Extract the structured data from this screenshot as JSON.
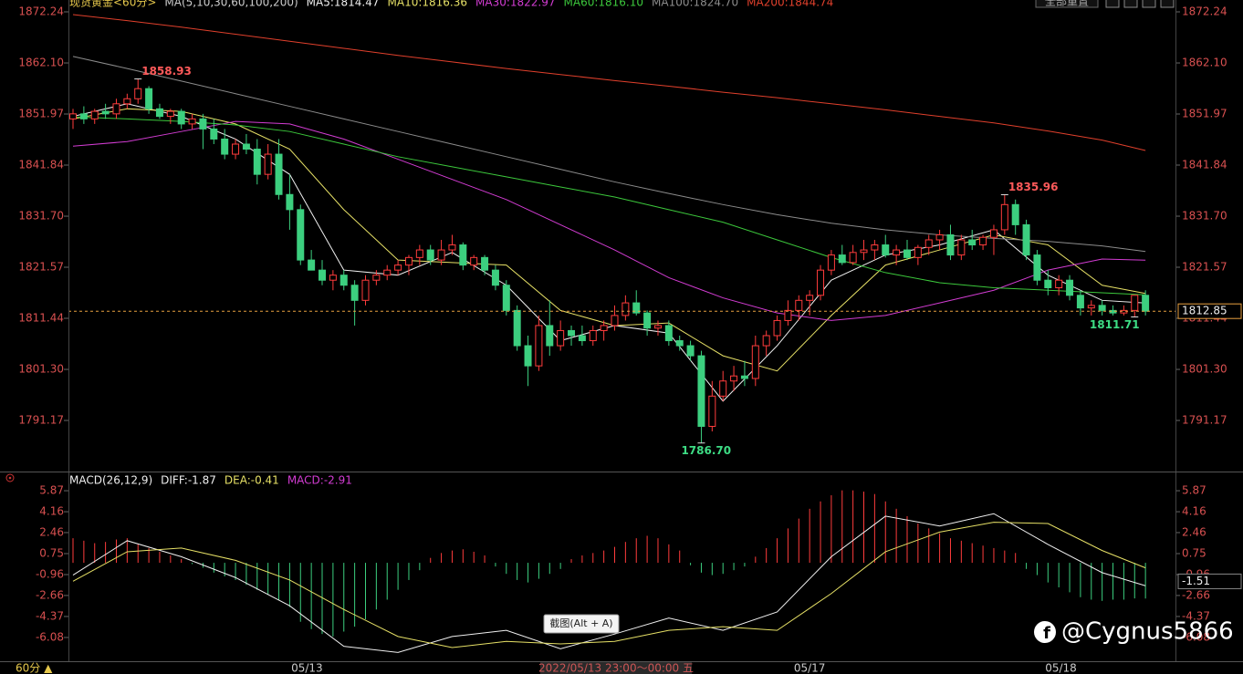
{
  "chart_data": [
    {
      "type": "candlestick",
      "title": "现货黄金<60分>",
      "indicator_label": "MA(5,10,30,60,100,200)",
      "up_color": "#ff3c3c",
      "down_color": "#3ccf7f",
      "ylim": [
        1781.4,
        1874.59
      ],
      "yticks": [
        1872.24,
        {
          "value": 1862.1,
          "label": "1862.10"
        },
        1851.97,
        1841.84,
        {
          "value": 1831.7,
          "label": "1831.70"
        },
        1821.57,
        1811.44,
        {
          "value": 1801.3,
          "label": "1801.30"
        },
        1791.17
      ],
      "candles": [
        [
          1851,
          1853,
          1849,
          1852
        ],
        [
          1852,
          1853.5,
          1850,
          1851
        ],
        [
          1851,
          1853,
          1850,
          1852.5
        ],
        [
          1852.5,
          1854,
          1851,
          1852
        ],
        [
          1852,
          1855,
          1851,
          1854
        ],
        [
          1854,
          1856,
          1853,
          1855
        ],
        [
          1855,
          1858.93,
          1854,
          1857
        ],
        [
          1857,
          1857.5,
          1852,
          1853
        ],
        [
          1853,
          1854,
          1851,
          1851.5
        ],
        [
          1851.5,
          1853,
          1850,
          1852.5
        ],
        [
          1852.5,
          1853,
          1849,
          1850
        ],
        [
          1850,
          1852,
          1849,
          1851
        ],
        [
          1851,
          1852,
          1845,
          1849
        ],
        [
          1849,
          1851,
          1846,
          1847
        ],
        [
          1847,
          1849,
          1843,
          1844
        ],
        [
          1844,
          1847,
          1843,
          1846
        ],
        [
          1846,
          1848,
          1844,
          1845
        ],
        [
          1845,
          1847,
          1838,
          1840
        ],
        [
          1840,
          1846,
          1839,
          1844
        ],
        [
          1844,
          1847,
          1835,
          1836
        ],
        [
          1836,
          1840,
          1829,
          1833
        ],
        [
          1833,
          1834,
          1822,
          1823
        ],
        [
          1823,
          1825,
          1821,
          1821
        ],
        [
          1821,
          1823,
          1818,
          1819
        ],
        [
          1819,
          1821,
          1817,
          1820
        ],
        [
          1820,
          1821,
          1817,
          1818
        ],
        [
          1818,
          1819,
          1810,
          1815
        ],
        [
          1815,
          1820,
          1814,
          1819
        ],
        [
          1819,
          1821,
          1818,
          1820
        ],
        [
          1820,
          1822,
          1819,
          1821
        ],
        [
          1821,
          1823,
          1820,
          1822
        ],
        [
          1822,
          1824,
          1820,
          1823.5
        ],
        [
          1823.5,
          1826,
          1822,
          1825
        ],
        [
          1825,
          1826,
          1822,
          1823
        ],
        [
          1823,
          1827,
          1822,
          1825
        ],
        [
          1825,
          1828,
          1824,
          1826
        ],
        [
          1826,
          1826.5,
          1821,
          1822
        ],
        [
          1822,
          1824,
          1821,
          1823.5
        ],
        [
          1823.5,
          1824,
          1820,
          1821
        ],
        [
          1821,
          1822,
          1817,
          1818
        ],
        [
          1818,
          1819,
          1812,
          1813
        ],
        [
          1813,
          1814,
          1805,
          1806
        ],
        [
          1806,
          1808,
          1798,
          1802
        ],
        [
          1802,
          1812,
          1801,
          1810
        ],
        [
          1810,
          1815,
          1804,
          1806
        ],
        [
          1806,
          1811,
          1805,
          1809
        ],
        [
          1809,
          1810,
          1806,
          1808
        ],
        [
          1808,
          1810,
          1806,
          1807
        ],
        [
          1807,
          1810,
          1806,
          1809
        ],
        [
          1809,
          1811,
          1807,
          1810
        ],
        [
          1810,
          1814,
          1809,
          1812
        ],
        [
          1812,
          1816,
          1811,
          1814.5
        ],
        [
          1814.5,
          1817,
          1812,
          1812.5
        ],
        [
          1812.5,
          1813,
          1808,
          1809.5
        ],
        [
          1809.5,
          1811,
          1808,
          1810
        ],
        [
          1810,
          1811,
          1806,
          1807
        ],
        [
          1807,
          1808,
          1805,
          1806
        ],
        [
          1806,
          1807,
          1803,
          1804
        ],
        [
          1804,
          1805,
          1786.7,
          1790
        ],
        [
          1790,
          1799,
          1789,
          1796
        ],
        [
          1796,
          1801,
          1795,
          1799
        ],
        [
          1799,
          1802,
          1797,
          1800
        ],
        [
          1800,
          1803,
          1798,
          1799.5
        ],
        [
          1799.5,
          1808,
          1798,
          1806
        ],
        [
          1806,
          1809,
          1804,
          1808
        ],
        [
          1808,
          1812,
          1807,
          1811
        ],
        [
          1811,
          1815,
          1810,
          1813
        ],
        [
          1813,
          1816,
          1811,
          1815
        ],
        [
          1815,
          1817,
          1812,
          1816
        ],
        [
          1816,
          1822,
          1815,
          1821
        ],
        [
          1821,
          1825,
          1820,
          1824
        ],
        [
          1824,
          1826,
          1822,
          1822.5
        ],
        [
          1822.5,
          1826,
          1822,
          1824.5
        ],
        [
          1824.5,
          1827,
          1823,
          1825
        ],
        [
          1825,
          1827,
          1823,
          1826
        ],
        [
          1826,
          1828,
          1823.5,
          1824
        ],
        [
          1824,
          1826,
          1822,
          1825
        ],
        [
          1825,
          1827,
          1823,
          1823.5
        ],
        [
          1823.5,
          1826,
          1822,
          1825.5
        ],
        [
          1825.5,
          1828,
          1824,
          1827
        ],
        [
          1827,
          1829,
          1825,
          1828
        ],
        [
          1828,
          1830,
          1823,
          1824
        ],
        [
          1824,
          1828,
          1823,
          1827
        ],
        [
          1827,
          1829,
          1825,
          1826
        ],
        [
          1826,
          1828,
          1825,
          1827.5
        ],
        [
          1827.5,
          1830,
          1824,
          1829
        ],
        [
          1829,
          1835.96,
          1828,
          1834
        ],
        [
          1834,
          1835,
          1828,
          1830
        ],
        [
          1830,
          1831,
          1823,
          1824
        ],
        [
          1824,
          1825,
          1818,
          1819
        ],
        [
          1819,
          1821,
          1816,
          1817.5
        ],
        [
          1817.5,
          1820,
          1816,
          1819
        ],
        [
          1819,
          1820,
          1815,
          1816
        ],
        [
          1816,
          1817,
          1812,
          1813.5
        ],
        [
          1813.5,
          1815,
          1812,
          1814
        ],
        [
          1814,
          1815,
          1812,
          1813
        ],
        [
          1813,
          1814,
          1812,
          1812.5
        ],
        [
          1812.5,
          1814,
          1812,
          1813
        ],
        [
          1813,
          1816,
          1811.71,
          1816
        ],
        [
          1816,
          1817,
          1812,
          1812.85
        ]
      ],
      "ma_x": [
        0,
        5,
        10,
        15,
        20,
        25,
        30,
        35,
        40,
        45,
        50,
        55,
        60,
        65,
        70,
        75,
        80,
        85,
        90,
        95,
        99
      ],
      "series": [
        {
          "name": "MA5:1814.47",
          "color": "#f0f0f0",
          "values": [
            1851.5,
            1854,
            1851.5,
            1847,
            1840,
            1821,
            1820,
            1824.5,
            1818,
            1807,
            1810,
            1808.5,
            1795,
            1806,
            1819,
            1824,
            1826,
            1829,
            1820,
            1815,
            1814.47
          ]
        },
        {
          "name": "MA10:1816.36",
          "color": "#e6e066",
          "values": [
            1851,
            1853,
            1852.5,
            1850,
            1845,
            1833,
            1823,
            1822.5,
            1822,
            1813,
            1810,
            1810.5,
            1804,
            1801,
            1812,
            1822,
            1825,
            1828,
            1826,
            1818,
            1816.36
          ]
        },
        {
          "name": "MA30:1822.97",
          "color": "#d23cd2",
          "values": [
            1845.6,
            1846.5,
            1848.5,
            1850.5,
            1850,
            1847,
            1843,
            1839,
            1835,
            1830,
            1825,
            1819.5,
            1815.5,
            1812.5,
            1811,
            1812,
            1814.5,
            1817,
            1821,
            1823.2,
            1822.97
          ]
        },
        {
          "name": "MA60:1816.10",
          "color": "#3cc83c",
          "values": [
            1851.4,
            1851,
            1850.5,
            1849.8,
            1848.5,
            1846,
            1843.5,
            1841.5,
            1839.5,
            1837.5,
            1835.5,
            1833,
            1830.5,
            1827,
            1823.5,
            1820.5,
            1818.5,
            1817.5,
            1817,
            1816.5,
            1816.1
          ]
        },
        {
          "name": "MA100:1824.70",
          "color": "#8c8c8c",
          "values": [
            1863.4,
            1861,
            1858.5,
            1856,
            1853.5,
            1851,
            1848.5,
            1846,
            1843.5,
            1841,
            1838.5,
            1836.2,
            1834,
            1832,
            1830.3,
            1829,
            1828,
            1827.3,
            1826.7,
            1825.8,
            1824.7
          ]
        },
        {
          "name": "MA200:1844.74",
          "color": "#e0402c",
          "values": [
            1871.7,
            1870.5,
            1869.2,
            1867.8,
            1866.4,
            1865,
            1863.6,
            1862.3,
            1861,
            1859.8,
            1858.6,
            1857.5,
            1856.3,
            1855.2,
            1854,
            1852.8,
            1851.5,
            1850.2,
            1848.6,
            1846.8,
            1844.74
          ]
        }
      ],
      "annotations": [
        {
          "x": 6,
          "value": 1858.93
        },
        {
          "x": 86,
          "value": 1835.96
        },
        {
          "x": 98,
          "value": 1811.71
        },
        {
          "x": 58,
          "value": 1786.7,
          "label": "1786.70"
        }
      ],
      "last_price": 1812.85,
      "x_labels": [
        {
          "x": 21.6,
          "label": "05/13"
        },
        {
          "x": 68,
          "label": "05/17"
        },
        {
          "x": 91.2,
          "label": "05/18"
        }
      ]
    },
    {
      "type": "macd",
      "title": "MACD(26,12,9)",
      "up_color": "#ff3c3c",
      "down_color": "#3ccf7f",
      "ylim": [
        -7.94,
        7.21
      ],
      "yticks": [
        5.87,
        4.16,
        2.46,
        0.75,
        -0.96,
        -2.66,
        -4.37,
        -6.08
      ],
      "histogram_name": "MACD:-2.91",
      "histogram_color": "#d23cd2",
      "histogram": [
        2.0,
        1.8,
        1.6,
        1.7,
        1.9,
        2.0,
        1.5,
        1.2,
        0.9,
        0.6,
        0.3,
        -0.1,
        -0.4,
        -0.8,
        -1.1,
        -1.4,
        -1.8,
        -2.2,
        -2.6,
        -3.0,
        -3.6,
        -4.8,
        -5.4,
        -5.8,
        -6.0,
        -5.6,
        -5.2,
        -4.6,
        -3.8,
        -3.0,
        -2.2,
        -1.4,
        -0.6,
        0.4,
        0.8,
        1.0,
        1.1,
        0.9,
        0.6,
        -0.3,
        -0.9,
        -1.4,
        -1.6,
        -1.3,
        -0.9,
        -0.5,
        0.3,
        0.6,
        0.8,
        1.0,
        1.3,
        1.7,
        2.0,
        2.2,
        2.0,
        1.5,
        1.0,
        -0.2,
        -0.8,
        -1.0,
        -0.9,
        -0.6,
        -0.3,
        0.5,
        1.2,
        2.0,
        2.8,
        3.6,
        4.4,
        5.0,
        5.5,
        5.9,
        5.9,
        5.8,
        5.6,
        5.0,
        4.4,
        3.8,
        3.2,
        2.8,
        2.4,
        2.0,
        1.8,
        1.6,
        1.4,
        1.2,
        1.0,
        0.8,
        -0.5,
        -1.0,
        -1.6,
        -2.0,
        -2.4,
        -2.8,
        -3.0,
        -3.1,
        -3.0,
        -3.0,
        -2.9,
        -2.91
      ],
      "line_x": [
        0,
        5,
        10,
        15,
        20,
        25,
        30,
        35,
        40,
        45,
        50,
        55,
        60,
        65,
        70,
        75,
        80,
        85,
        90,
        95,
        99
      ],
      "series": [
        {
          "name": "DIFF:-1.87",
          "color": "#f0f0f0",
          "values": [
            -1.0,
            1.8,
            0.5,
            -1.2,
            -3.5,
            -6.8,
            -7.3,
            -6.0,
            -5.5,
            -7.0,
            -5.8,
            -4.5,
            -5.5,
            -4.0,
            0.5,
            3.8,
            3.0,
            4.0,
            1.5,
            -0.8,
            -1.87
          ]
        },
        {
          "name": "DEA:-0.41",
          "color": "#e6e066",
          "values": [
            -1.5,
            0.9,
            1.2,
            0.2,
            -1.4,
            -3.8,
            -6.0,
            -6.9,
            -6.4,
            -6.6,
            -6.4,
            -5.5,
            -5.2,
            -5.5,
            -2.5,
            0.9,
            2.5,
            3.3,
            3.2,
            1.0,
            -0.41
          ]
        }
      ],
      "last_value": -1.51
    }
  ],
  "period": "60分 ▲",
  "cursor_time": "2022/05/13 23:00～00:00 五",
  "tooltip": "截图(Alt + A)",
  "toolbar": "全部重置",
  "watermark": "@Cygnus5866"
}
